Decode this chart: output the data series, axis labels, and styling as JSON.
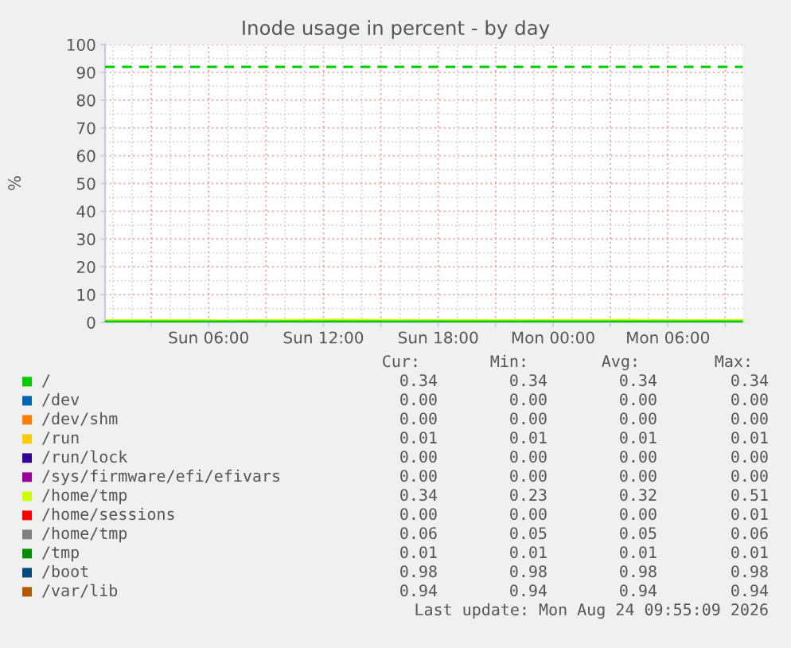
{
  "chart_data": {
    "type": "line",
    "title": "Inode usage in percent - by day",
    "ylabel": "%",
    "x": [
      "2026-08-23T00:35",
      "2026-08-23T03:35",
      "2026-08-23T06:35",
      "2026-08-23T09:35",
      "2026-08-23T12:35",
      "2026-08-23T15:35",
      "2026-08-23T18:35",
      "2026-08-23T21:35",
      "2026-08-24T00:35",
      "2026-08-24T03:35",
      "2026-08-24T06:35",
      "2026-08-24T09:55"
    ],
    "xlim": [
      "2026-08-23T00:35",
      "2026-08-24T09:55"
    ],
    "xticks": [
      {
        "value": "2026-08-23T03:00",
        "label": null
      },
      {
        "value": "2026-08-23T06:00",
        "label": "Sun 06:00"
      },
      {
        "value": "2026-08-23T09:00",
        "label": null
      },
      {
        "value": "2026-08-23T12:00",
        "label": "Sun 12:00"
      },
      {
        "value": "2026-08-23T15:00",
        "label": null
      },
      {
        "value": "2026-08-23T18:00",
        "label": "Sun 18:00"
      },
      {
        "value": "2026-08-23T21:00",
        "label": null
      },
      {
        "value": "2026-08-24T00:00",
        "label": "Mon 00:00"
      },
      {
        "value": "2026-08-24T03:00",
        "label": null
      },
      {
        "value": "2026-08-24T06:00",
        "label": "Mon 06:00"
      },
      {
        "value": "2026-08-24T09:00",
        "label": null
      }
    ],
    "ylim": [
      0,
      100
    ],
    "yticks": [
      0,
      10,
      20,
      30,
      40,
      50,
      60,
      70,
      80,
      90,
      100
    ],
    "series": [
      {
        "name": "/",
        "color": "#00cc00",
        "values": [
          0.34,
          0.34,
          0.34,
          0.34,
          0.34,
          0.34,
          0.34,
          0.34,
          0.34,
          0.34,
          0.34,
          0.34
        ]
      },
      {
        "name": "/dev",
        "color": "#0066b3",
        "values": [
          null,
          null,
          null,
          null,
          null,
          null,
          null,
          null,
          null,
          null,
          null,
          null
        ]
      },
      {
        "name": "/dev/shm",
        "color": "#ff8000",
        "values": [
          null,
          null,
          null,
          null,
          null,
          null,
          null,
          null,
          null,
          null,
          null,
          null
        ]
      },
      {
        "name": "/run",
        "color": "#ffcc00",
        "values": [
          null,
          null,
          null,
          null,
          null,
          null,
          null,
          null,
          null,
          null,
          null,
          null
        ]
      },
      {
        "name": "/run/lock",
        "color": "#330099",
        "values": [
          null,
          null,
          null,
          null,
          null,
          null,
          null,
          null,
          null,
          null,
          null,
          null
        ]
      },
      {
        "name": "/sys/firmware/efi/efivars",
        "color": "#990099",
        "values": [
          null,
          null,
          null,
          null,
          null,
          null,
          null,
          null,
          null,
          null,
          null,
          null
        ]
      },
      {
        "name": "/home/tmp",
        "color": "#ccff00",
        "values": [
          0.3,
          0.28,
          0.23,
          0.35,
          0.51,
          0.32,
          0.3,
          0.27,
          0.33,
          0.38,
          0.29,
          0.34
        ]
      },
      {
        "name": "/home/sessions",
        "color": "#ff0000",
        "values": [
          null,
          null,
          null,
          null,
          null,
          null,
          null,
          null,
          null,
          null,
          null,
          null
        ]
      },
      {
        "name": "/home/tmp",
        "color": "#808080",
        "values": [
          null,
          null,
          null,
          null,
          null,
          null,
          null,
          null,
          null,
          null,
          null,
          null
        ]
      },
      {
        "name": "/tmp",
        "color": "#008f00",
        "values": [
          null,
          null,
          null,
          null,
          null,
          null,
          null,
          null,
          null,
          null,
          null,
          null
        ]
      },
      {
        "name": "/boot",
        "color": "#00487d",
        "values": [
          null,
          null,
          null,
          null,
          null,
          null,
          null,
          null,
          null,
          null,
          null,
          null
        ]
      },
      {
        "name": "/var/lib",
        "color": "#b35a00",
        "values": [
          null,
          null,
          null,
          null,
          null,
          null,
          null,
          null,
          null,
          null,
          null,
          null
        ]
      }
    ],
    "ref_lines": [
      {
        "axis": "y",
        "value": 92,
        "color": "#00cc00",
        "line_style": "dashed"
      }
    ],
    "grid": true,
    "legend": "bottom",
    "annotations": [
      "Cur:",
      "Min:",
      "Avg:",
      "Max:",
      "0.34",
      "0.34",
      "0.34",
      "0.34",
      "0.00",
      "0.00",
      "0.00",
      "0.00",
      "0.00",
      "0.00",
      "0.00",
      "0.00",
      "0.01",
      "0.01",
      "0.01",
      "0.01",
      "0.00",
      "0.00",
      "0.00",
      "0.00",
      "0.00",
      "0.00",
      "0.00",
      "0.00",
      "0.34",
      "0.23",
      "0.32",
      "0.51",
      "0.00",
      "0.00",
      "0.00",
      "0.01",
      "0.06",
      "0.05",
      "0.05",
      "0.06",
      "0.01",
      "0.01",
      "0.01",
      "0.01",
      "0.98",
      "0.98",
      "0.98",
      "0.98",
      "0.94",
      "0.94",
      "0.94",
      "0.94",
      "Last update: Mon Aug 24 09:55:09 2026"
    ]
  }
}
